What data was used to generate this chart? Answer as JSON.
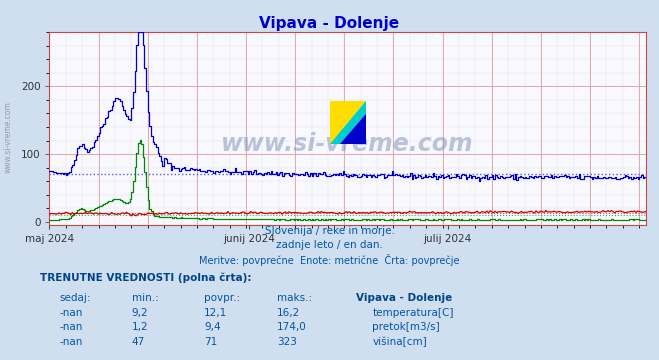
{
  "title": "Vipava - Dolenje",
  "subtitle1": "Slovenija / reke in morje.",
  "subtitle2": "zadnje leto / en dan.",
  "subtitle3": "Meritve: povprečne  Enote: metrične  Črta: povprečje",
  "table_header": "TRENUTNE VREDNOSTI (polna črta):",
  "col_headers": [
    "sedaj:",
    "min.:",
    "povpr.:",
    "maks.:",
    "Vipava - Dolenje"
  ],
  "row1": [
    "-nan",
    "9,2",
    "12,1",
    "16,2",
    "temperatura[C]"
  ],
  "row2": [
    "-nan",
    "1,2",
    "9,4",
    "174,0",
    "pretok[m3/s]"
  ],
  "row3": [
    "-nan",
    "47",
    "71",
    "323",
    "višina[cm]"
  ],
  "legend_colors": [
    "#cc0000",
    "#00aa00",
    "#0000cc"
  ],
  "bg_color": "#d0dff0",
  "plot_bg": "#f8f8ff",
  "title_color": "#0000cc",
  "text_color": "#0055aa",
  "table_header_color": "#004488",
  "avg_temp": 12.1,
  "avg_flow": 9.4,
  "avg_height": 71,
  "ylim": [
    -5,
    280
  ],
  "yticks": [
    0,
    100,
    200
  ],
  "temp_color": "#cc0000",
  "flow_color": "#008800",
  "height_color": "#0000cc",
  "watermark": "www.si-vreme.com",
  "grid_h_color": "#ddaaaa",
  "grid_v_color": "#ddaaaa",
  "n_points": 365,
  "x_tick_positions": [
    0,
    122,
    243
  ],
  "x_tick_labels": [
    "maj 2024",
    "junij 2024",
    "julij 2024"
  ]
}
